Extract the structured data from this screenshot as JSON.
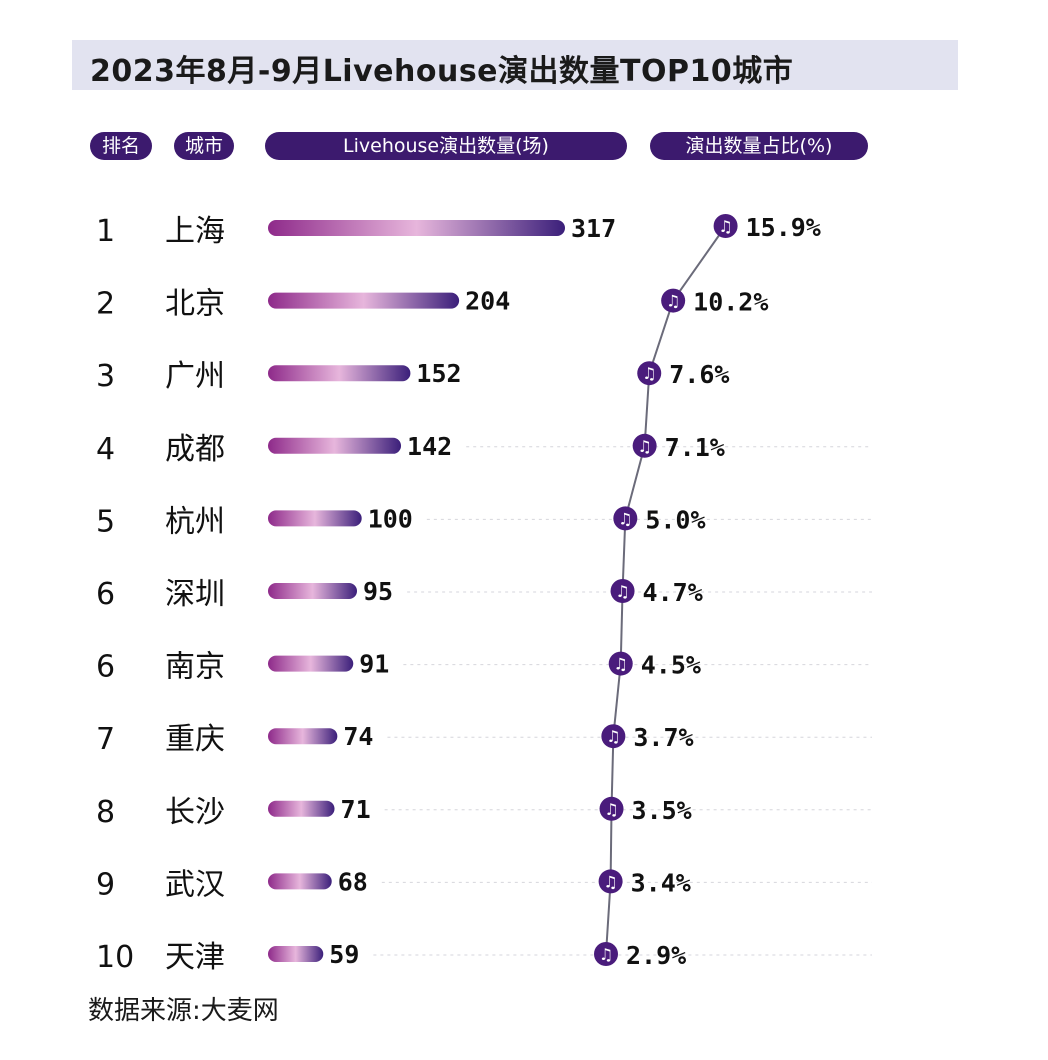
{
  "title": "2023年8月-9月Livehouse演出数量TOP10城市",
  "headers": {
    "rank": "排名",
    "city": "城市",
    "count": "Livehouse演出数量(场)",
    "share": "演出数量占比(%)"
  },
  "source": "数据来源:大麦网",
  "colors": {
    "header_bg": "#3c1a6e",
    "bar_start": "#8e2a8a",
    "bar_mid": "#e7b6dc",
    "bar_end": "#3b1f7a",
    "marker": "#4a1c7c",
    "title_bg": "#e2e3f0"
  },
  "chart_data": {
    "type": "bar",
    "categories": [
      "上海",
      "北京",
      "广州",
      "成都",
      "杭州",
      "深圳",
      "南京",
      "重庆",
      "长沙",
      "武汉",
      "天津"
    ],
    "ranks": [
      "1",
      "2",
      "3",
      "4",
      "5",
      "6",
      "6",
      "7",
      "8",
      "9",
      "10"
    ],
    "series": [
      {
        "values": [
          317,
          204,
          152,
          142,
          100,
          95,
          91,
          74,
          71,
          68,
          59
        ],
        "labels": [
          "317",
          "204",
          "152",
          "142",
          "100",
          "95",
          "91",
          "74",
          "71",
          "68",
          "59"
        ]
      },
      {
        "values": [
          15.9,
          10.2,
          7.6,
          7.1,
          5.0,
          4.7,
          4.5,
          3.7,
          3.5,
          3.4,
          2.9
        ],
        "labels": [
          "15.9%",
          "10.2%",
          "7.6%",
          "7.1%",
          "5.0%",
          "4.7%",
          "4.5%",
          "3.7%",
          "3.5%",
          "3.4%",
          "2.9%"
        ]
      }
    ],
    "marker_icon": "music-note-icon"
  }
}
